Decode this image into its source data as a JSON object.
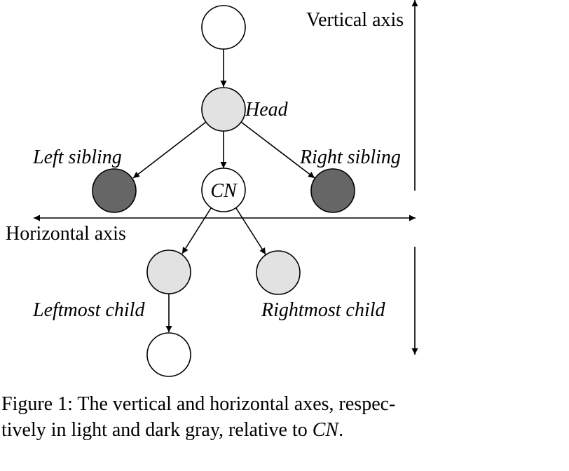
{
  "colors": {
    "light_gray": "#e2e2e2",
    "dark_gray": "#666666",
    "white": "#ffffff",
    "stroke": "#000000"
  },
  "diagram": {
    "nodes": {
      "root": {
        "fill": "white",
        "label": ""
      },
      "head": {
        "fill": "light_gray",
        "label": "Head"
      },
      "cn": {
        "fill": "white",
        "label": "CN"
      },
      "left_sibling": {
        "fill": "dark_gray",
        "label": "Left sibling"
      },
      "right_sibling": {
        "fill": "dark_gray",
        "label": "Right sibling"
      },
      "leftmost_child": {
        "fill": "light_gray",
        "label": "Leftmost child"
      },
      "rightmost_child": {
        "fill": "light_gray",
        "label": "Rightmost child"
      },
      "grandchild": {
        "fill": "white",
        "label": ""
      }
    },
    "edges": [
      [
        "root",
        "head"
      ],
      [
        "head",
        "left_sibling"
      ],
      [
        "head",
        "cn"
      ],
      [
        "head",
        "right_sibling"
      ],
      [
        "cn",
        "leftmost_child"
      ],
      [
        "cn",
        "rightmost_child"
      ],
      [
        "leftmost_child",
        "grandchild"
      ]
    ],
    "vertical_axis_label": "Vertical axis",
    "horizontal_axis_label": "Horizontal axis"
  },
  "caption": {
    "line1": "Figure 1: The vertical and horizontal axes, respec-",
    "line2_prefix": "tively in light and dark gray, relative to ",
    "line2_em": "CN",
    "line2_suffix": "."
  }
}
